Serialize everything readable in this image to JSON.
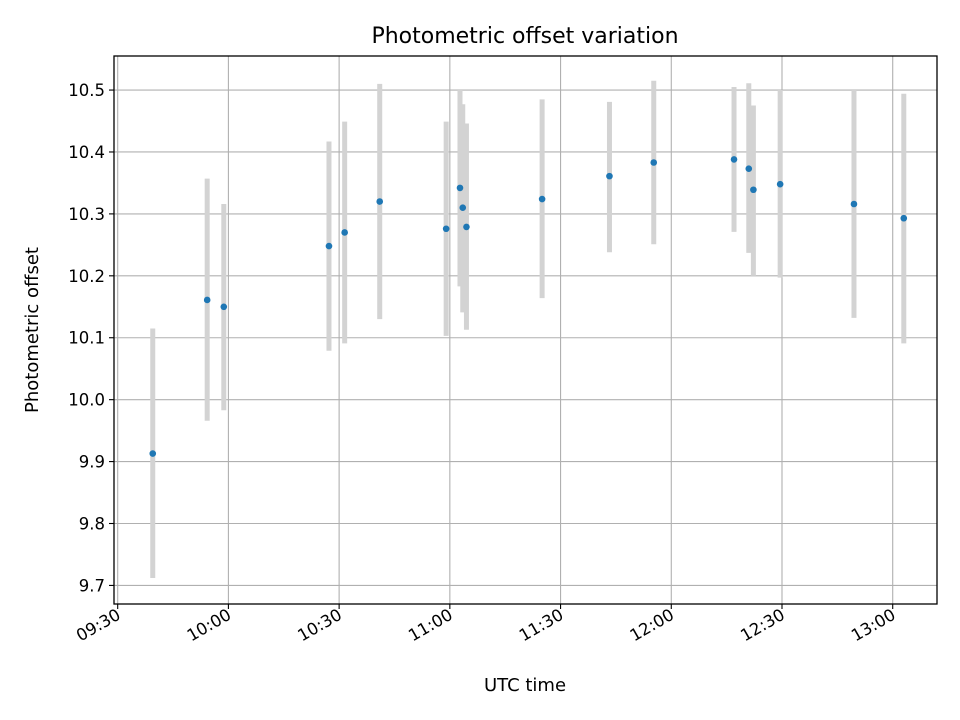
{
  "chart_data": {
    "type": "scatter",
    "title": "Photometric offset variation",
    "xlabel": "UTC time",
    "ylabel": "Photometric offset",
    "x_ticks": [
      "09:30",
      "10:00",
      "10:30",
      "11:00",
      "11:30",
      "12:00",
      "12:30",
      "13:00"
    ],
    "y_ticks": [
      "9.7",
      "9.8",
      "9.9",
      "10.0",
      "10.1",
      "10.2",
      "10.3",
      "10.4",
      "10.5"
    ],
    "xlim": [
      "09:29",
      "13:12"
    ],
    "ylim": [
      9.67,
      10.555
    ],
    "grid": true,
    "marker_color": "#1f77b4",
    "errorbar_color": "#d3d3d3",
    "points": [
      {
        "x": "09:39:30",
        "y": 9.913,
        "err_low": 9.712,
        "err_high": 10.115
      },
      {
        "x": "09:54:15",
        "y": 10.161,
        "err_low": 9.966,
        "err_high": 10.357
      },
      {
        "x": "09:58:45",
        "y": 10.15,
        "err_low": 9.983,
        "err_high": 10.316
      },
      {
        "x": "10:27:15",
        "y": 10.248,
        "err_low": 10.079,
        "err_high": 10.417
      },
      {
        "x": "10:31:30",
        "y": 10.27,
        "err_low": 10.091,
        "err_high": 10.449
      },
      {
        "x": "10:41:00",
        "y": 10.32,
        "err_low": 10.13,
        "err_high": 10.51
      },
      {
        "x": "10:59:00",
        "y": 10.276,
        "err_low": 10.103,
        "err_high": 10.449
      },
      {
        "x": "11:02:45",
        "y": 10.342,
        "err_low": 10.183,
        "err_high": 10.5
      },
      {
        "x": "11:03:30",
        "y": 10.31,
        "err_low": 10.141,
        "err_high": 10.477
      },
      {
        "x": "11:04:30",
        "y": 10.279,
        "err_low": 10.113,
        "err_high": 10.446
      },
      {
        "x": "11:25:00",
        "y": 10.324,
        "err_low": 10.164,
        "err_high": 10.485
      },
      {
        "x": "11:43:15",
        "y": 10.361,
        "err_low": 10.238,
        "err_high": 10.481
      },
      {
        "x": "11:55:15",
        "y": 10.383,
        "err_low": 10.251,
        "err_high": 10.515
      },
      {
        "x": "12:17:00",
        "y": 10.388,
        "err_low": 10.271,
        "err_high": 10.505
      },
      {
        "x": "12:21:00",
        "y": 10.373,
        "err_low": 10.237,
        "err_high": 10.511
      },
      {
        "x": "12:22:15",
        "y": 10.339,
        "err_low": 10.2,
        "err_high": 10.475
      },
      {
        "x": "12:29:30",
        "y": 10.348,
        "err_low": 10.197,
        "err_high": 10.5
      },
      {
        "x": "12:49:30",
        "y": 10.316,
        "err_low": 10.132,
        "err_high": 10.5
      },
      {
        "x": "13:03:00",
        "y": 10.293,
        "err_low": 10.091,
        "err_high": 10.494
      }
    ]
  }
}
